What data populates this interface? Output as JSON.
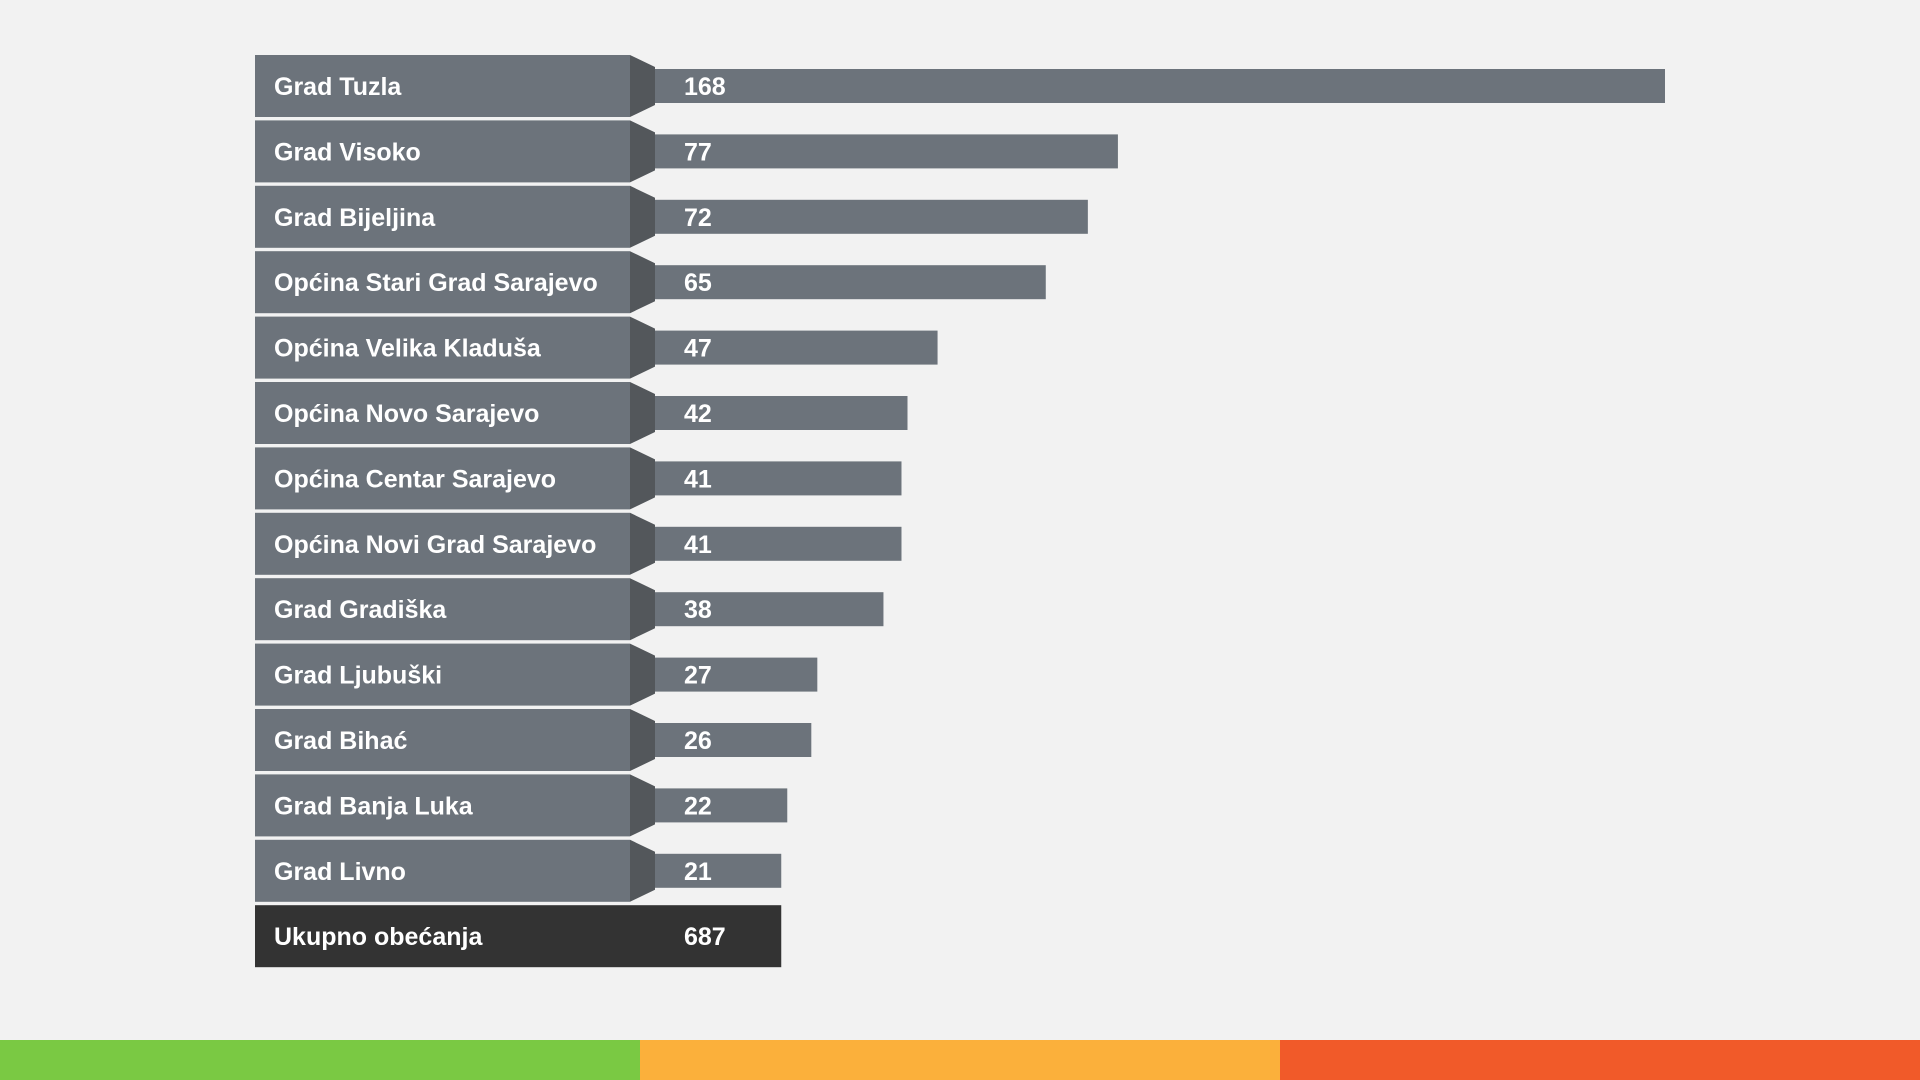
{
  "chart_data": {
    "type": "bar",
    "orientation": "horizontal",
    "categories": [
      "Grad Tuzla",
      "Grad Visoko",
      "Grad Bijeljina",
      "Općina Stari Grad Sarajevo",
      "Općina Velika Kladuša",
      "Općina Novo Sarajevo",
      "Općina Centar Sarajevo",
      "Općina Novi Grad Sarajevo",
      "Grad Gradiška",
      "Grad Ljubuški",
      "Grad Bihać",
      "Grad Banja Luka",
      "Grad Livno"
    ],
    "values": [
      168,
      77,
      72,
      65,
      47,
      42,
      41,
      41,
      38,
      27,
      26,
      22,
      21
    ],
    "value_labels": [
      "168",
      "77",
      "72",
      "65",
      "47",
      "42",
      "41",
      "41",
      "38",
      "27",
      "26",
      "22",
      "21"
    ],
    "total": {
      "label": "Ukupno obećanja",
      "value": 687,
      "value_label": "687"
    },
    "bar_color": "#6c737b",
    "label_color": "#6c737b",
    "arrow_color": "#53575b",
    "total_color": "#333333"
  },
  "footer": {
    "colors": [
      "#7ac943",
      "#fbb03b",
      "#f15a29"
    ]
  }
}
